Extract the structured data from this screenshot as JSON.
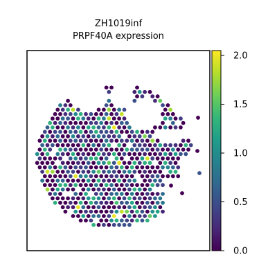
{
  "chart_data": {
    "type": "scatter",
    "subtype": "spatial-hexbin-expression",
    "title_lines": [
      "ZH1019inf",
      "PRPF40A expression"
    ],
    "xlabel": "",
    "ylabel": "",
    "colorbar": {
      "colormap": "viridis",
      "range": [
        0.0,
        2.05
      ],
      "ticks": [
        0.0,
        0.5,
        1.0,
        1.5,
        2.0
      ],
      "tick_labels": [
        "0.0",
        "0.5",
        "1.0",
        "1.5",
        "2.0"
      ],
      "stops": [
        "#440154",
        "#482878",
        "#3e4989",
        "#31688e",
        "#26828e",
        "#1f9e89",
        "#35b779",
        "#6ece58",
        "#b5de2b",
        "#fde725"
      ]
    },
    "grid": false,
    "legend": "colorbar-right",
    "distribution_note": "",
    "value_mix": {
      "zero_fraction": 0.42,
      "low_mean": 0.55,
      "high_fraction": 0.03
    }
  }
}
